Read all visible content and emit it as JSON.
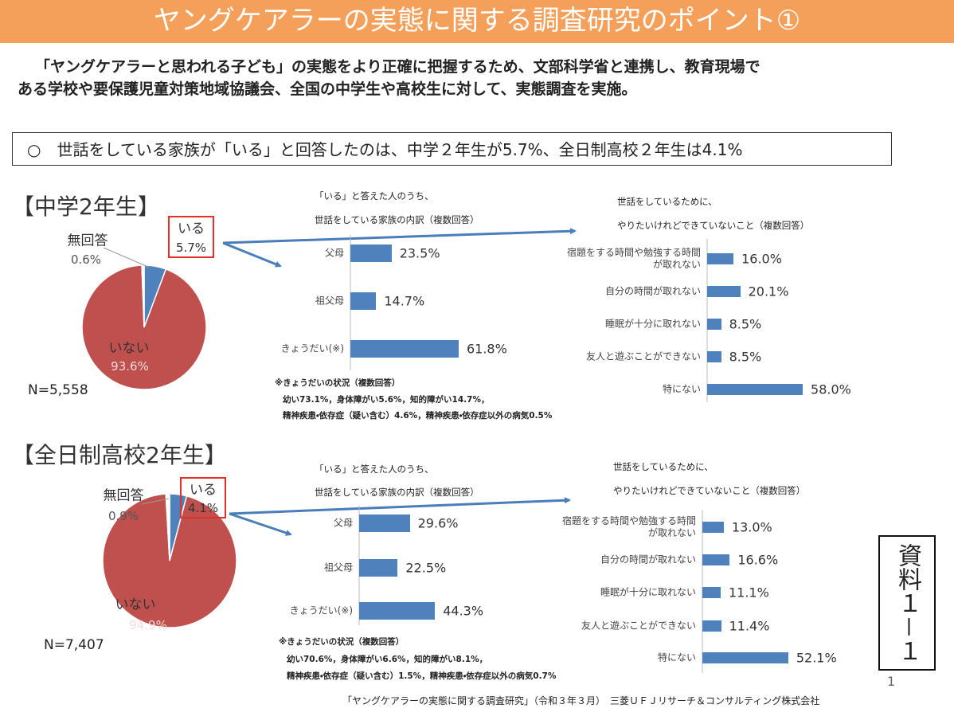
{
  "header": {
    "title": "ヤングケアラーの実態に関する調査研究のポイント①"
  },
  "intro": [
    "「ヤングケアラーと思われる子ども」の実態をより正確に把握するため、文部科学省と連携し、教育現場で",
    "ある学校や要保護児童対策地域協議会、全国の中学生や高校生に対して、実態調査を実施。"
  ],
  "summary": "○　世話をしている家族が「いる」と回答したのは、中学２年生が5.7%、全日制高校２年生は4.1%",
  "chart_data": [
    {
      "type": "pie",
      "title": "【中学2年生】",
      "note": "N=5,558",
      "categories": [
        "いる",
        "いない",
        "無回答"
      ],
      "values": [
        5.7,
        93.6,
        0.6
      ],
      "value_labels": [
        "5.7%",
        "93.6%",
        "0.6%"
      ],
      "colors": [
        "#4f81bd",
        "#c0504d",
        "#ffffff"
      ]
    },
    {
      "type": "bar",
      "orientation": "horizontal",
      "title": "「いる」と答えた人のうち、",
      "subtitle": "世話をしている家族の内訳（複数回答）",
      "categories": [
        "父母",
        "祖父母",
        "きょうだい(※)"
      ],
      "values": [
        23.5,
        14.7,
        61.8
      ],
      "value_labels": [
        "23.5%",
        "14.7%",
        "61.8%"
      ],
      "color": "#4f81bd",
      "notes": [
        "※きょうだいの状況（複数回答）",
        "幼い73.1%，身体障がい5.6%，知的障がい14.7%，",
        "精神疾患・依存症（疑い含む）4.6%，精神疾患・依存症以外の病気0.5%"
      ]
    },
    {
      "type": "bar",
      "orientation": "horizontal",
      "title": "世話をしているために、",
      "subtitle": "やりたいけれどできていないこと（複数回答）",
      "categories": [
        "宿題をする時間や勉強する時間が取れない",
        "自分の時間が取れない",
        "睡眠が十分に取れない",
        "友人と遊ぶことができない",
        "特にない"
      ],
      "values": [
        16.0,
        20.1,
        8.5,
        8.5,
        58.0
      ],
      "value_labels": [
        "16.0%",
        "20.1%",
        "8.5%",
        "8.5%",
        "58.0%"
      ],
      "color": "#4f81bd"
    },
    {
      "type": "pie",
      "title": "【全日制高校2年生】",
      "note": "N=7,407",
      "categories": [
        "いる",
        "いない",
        "無回答"
      ],
      "values": [
        4.1,
        94.9,
        0.9
      ],
      "value_labels": [
        "4.1%",
        "94.9%",
        "0.9%"
      ],
      "colors": [
        "#4f81bd",
        "#c0504d",
        "#ffffff"
      ]
    },
    {
      "type": "bar",
      "orientation": "horizontal",
      "title": "「いる」と答えた人のうち、",
      "subtitle": "世話をしている家族の内訳（複数回答）",
      "categories": [
        "父母",
        "祖父母",
        "きょうだい(※)"
      ],
      "values": [
        29.6,
        22.5,
        44.3
      ],
      "value_labels": [
        "29.6%",
        "22.5%",
        "44.3%"
      ],
      "color": "#4f81bd",
      "notes": [
        "※きょうだいの状況（複数回答）",
        "幼い70.6%，身体障がい6.6%，知的障がい8.1%，",
        "精神疾患・依存症（疑い含む）1.5%，精神疾患・依存症以外の病気0.7%"
      ]
    },
    {
      "type": "bar",
      "orientation": "horizontal",
      "title": "世話をしているために、",
      "subtitle": "やりたいけれどできていないこと（複数回答）",
      "categories": [
        "宿題をする時間や勉強する時間が取れない",
        "自分の時間が取れない",
        "睡眠が十分に取れない",
        "友人と遊ぶことができない",
        "特にない"
      ],
      "values": [
        13.0,
        16.6,
        11.1,
        11.4,
        52.1
      ],
      "value_labels": [
        "13.0%",
        "16.6%",
        "11.1%",
        "11.4%",
        "52.1%"
      ],
      "color": "#4f81bd"
    }
  ],
  "footer": {
    "source": "「ヤングケアラーの実態に関する調査研究」（令和３年３月）　三菱ＵＦＪリサーチ＆コンサルティング株式会社",
    "page": "1",
    "doc_id": "資料１－１"
  }
}
